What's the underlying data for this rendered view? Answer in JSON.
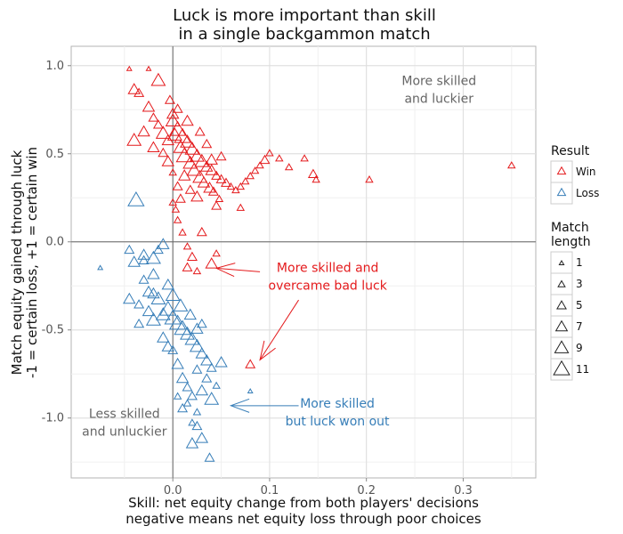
{
  "chart_data": {
    "type": "scatter",
    "title_lines": [
      "Luck is more important than skill",
      "in a single backgammon match"
    ],
    "xlabel_lines": [
      "Skill: net equity change from both players' decisions",
      "negative means net equity loss through poor choices"
    ],
    "ylabel_lines": [
      "Match equity gained through luck",
      "-1 = certain loss, +1 = certain win"
    ],
    "xlim": [
      -0.105,
      0.375
    ],
    "ylim": [
      -1.34,
      1.11
    ],
    "x_ticks": [
      0.0,
      0.1,
      0.2,
      0.3
    ],
    "x_tick_labels": [
      "0.0",
      "0.1",
      "0.2",
      "0.3"
    ],
    "y_ticks": [
      -1.0,
      -0.5,
      0.0,
      0.5,
      1.0
    ],
    "y_tick_labels": [
      "-1.0",
      "-0.5",
      "0.0",
      "0.5",
      "1.0"
    ],
    "grid": true,
    "colors": {
      "Win": "#e41a1c",
      "Loss": "#377eb8",
      "neutral": "#666666"
    },
    "legend": {
      "placement": "right",
      "result_title": "Result",
      "result_items": [
        "Win",
        "Loss"
      ],
      "length_title_lines": [
        "Match",
        "length"
      ],
      "length_items": [
        "1",
        "3",
        "5",
        "7",
        "9",
        "11"
      ]
    },
    "annotations": [
      {
        "lines": [
          "More skilled",
          "and luckier"
        ],
        "color": "neutral",
        "x": 0.275,
        "y": 0.89
      },
      {
        "lines": [
          "Less skilled",
          "and unluckier"
        ],
        "color": "neutral",
        "x": -0.05,
        "y": -1.0
      },
      {
        "lines": [
          "More skilled and",
          "overcame bad luck"
        ],
        "color": "Win",
        "x": 0.16,
        "y": -0.17
      },
      {
        "lines": [
          "More skilled",
          "but luck won out"
        ],
        "color": "Loss",
        "x": 0.17,
        "y": -0.94
      }
    ],
    "arrows": [
      {
        "color": "Win",
        "from": [
          0.09,
          -0.17
        ],
        "to": [
          0.045,
          -0.15
        ]
      },
      {
        "color": "Win",
        "from": [
          0.13,
          -0.33
        ],
        "to": [
          0.09,
          -0.67
        ]
      },
      {
        "color": "Loss",
        "from": [
          0.13,
          -0.93
        ],
        "to": [
          0.06,
          -0.93
        ]
      }
    ],
    "series": [
      {
        "name": "Win",
        "points": [
          [
            -0.045,
            0.98,
            1
          ],
          [
            -0.04,
            0.86,
            7
          ],
          [
            -0.025,
            0.98,
            1
          ],
          [
            -0.015,
            0.91,
            9
          ],
          [
            -0.035,
            0.84,
            5
          ],
          [
            -0.025,
            0.76,
            7
          ],
          [
            -0.02,
            0.7,
            5
          ],
          [
            -0.03,
            0.62,
            7
          ],
          [
            -0.04,
            0.57,
            9
          ],
          [
            -0.02,
            0.53,
            7
          ],
          [
            -0.015,
            0.66,
            5
          ],
          [
            -0.01,
            0.61,
            9
          ],
          [
            -0.005,
            0.57,
            7
          ],
          [
            -0.01,
            0.5,
            5
          ],
          [
            -0.005,
            0.45,
            7
          ],
          [
            0.0,
            0.39,
            3
          ],
          [
            0.005,
            0.31,
            5
          ],
          [
            0.0,
            0.22,
            3
          ],
          [
            0.005,
            0.12,
            3
          ],
          [
            0.01,
            0.05,
            3
          ],
          [
            0.015,
            -0.03,
            3
          ],
          [
            0.02,
            -0.09,
            5
          ],
          [
            0.015,
            -0.15,
            5
          ],
          [
            0.025,
            -0.17,
            3
          ],
          [
            0.04,
            -0.13,
            7
          ],
          [
            0.08,
            -0.7,
            5
          ],
          [
            0.045,
            -0.07,
            3
          ],
          [
            0.0,
            0.68,
            9
          ],
          [
            0.005,
            0.63,
            11
          ],
          [
            0.01,
            0.59,
            11
          ],
          [
            0.015,
            0.56,
            9
          ],
          [
            0.02,
            0.52,
            9
          ],
          [
            0.025,
            0.48,
            9
          ],
          [
            0.03,
            0.45,
            9
          ],
          [
            0.035,
            0.42,
            7
          ],
          [
            0.04,
            0.4,
            7
          ],
          [
            0.045,
            0.37,
            5
          ],
          [
            0.05,
            0.35,
            5
          ],
          [
            0.055,
            0.33,
            5
          ],
          [
            0.06,
            0.31,
            3
          ],
          [
            0.065,
            0.29,
            3
          ],
          [
            0.07,
            0.31,
            3
          ],
          [
            0.075,
            0.34,
            3
          ],
          [
            0.08,
            0.37,
            3
          ],
          [
            0.085,
            0.4,
            3
          ],
          [
            0.09,
            0.43,
            3
          ],
          [
            0.095,
            0.46,
            5
          ],
          [
            0.1,
            0.5,
            3
          ],
          [
            0.11,
            0.47,
            3
          ],
          [
            0.12,
            0.42,
            3
          ],
          [
            0.136,
            0.47,
            3
          ],
          [
            0.145,
            0.38,
            5
          ],
          [
            0.148,
            0.35,
            3
          ],
          [
            0.203,
            0.35,
            3
          ],
          [
            0.35,
            0.43,
            3
          ],
          [
            0.0,
            0.72,
            7
          ],
          [
            0.002,
            0.6,
            9
          ],
          [
            0.008,
            0.53,
            9
          ],
          [
            0.012,
            0.48,
            11
          ],
          [
            0.018,
            0.44,
            9
          ],
          [
            0.022,
            0.4,
            9
          ],
          [
            0.028,
            0.36,
            9
          ],
          [
            0.032,
            0.33,
            7
          ],
          [
            0.038,
            0.3,
            7
          ],
          [
            0.012,
            0.37,
            7
          ],
          [
            0.018,
            0.29,
            5
          ],
          [
            0.008,
            0.24,
            5
          ],
          [
            0.003,
            0.18,
            3
          ],
          [
            0.025,
            0.25,
            7
          ],
          [
            0.042,
            0.28,
            5
          ],
          [
            0.048,
            0.24,
            3
          ],
          [
            0.07,
            0.19,
            3
          ],
          [
            0.035,
            0.55,
            5
          ],
          [
            0.05,
            0.48,
            5
          ],
          [
            -0.003,
            0.8,
            5
          ],
          [
            0.005,
            0.75,
            5
          ],
          [
            0.015,
            0.68,
            7
          ],
          [
            0.028,
            0.62,
            5
          ],
          [
            0.04,
            0.46,
            7
          ],
          [
            0.045,
            0.2,
            5
          ],
          [
            0.03,
            0.05,
            5
          ]
        ]
      },
      {
        "name": "Loss",
        "points": [
          [
            -0.075,
            -0.15,
            1
          ],
          [
            -0.038,
            0.23,
            11
          ],
          [
            -0.045,
            -0.05,
            5
          ],
          [
            -0.03,
            -0.08,
            7
          ],
          [
            -0.04,
            -0.12,
            7
          ],
          [
            -0.02,
            -0.1,
            9
          ],
          [
            -0.015,
            -0.05,
            5
          ],
          [
            -0.01,
            -0.02,
            7
          ],
          [
            -0.02,
            -0.19,
            7
          ],
          [
            -0.03,
            -0.22,
            5
          ],
          [
            -0.025,
            -0.29,
            7
          ],
          [
            -0.015,
            -0.33,
            9
          ],
          [
            -0.045,
            -0.33,
            7
          ],
          [
            -0.035,
            -0.36,
            5
          ],
          [
            -0.025,
            -0.4,
            7
          ],
          [
            -0.035,
            -0.47,
            5
          ],
          [
            -0.02,
            -0.45,
            9
          ],
          [
            -0.01,
            -0.42,
            9
          ],
          [
            -0.005,
            -0.39,
            11
          ],
          [
            0.0,
            -0.44,
            11
          ],
          [
            0.005,
            -0.47,
            11
          ],
          [
            0.01,
            -0.5,
            11
          ],
          [
            0.015,
            -0.53,
            9
          ],
          [
            0.02,
            -0.56,
            9
          ],
          [
            0.025,
            -0.6,
            9
          ],
          [
            0.03,
            -0.64,
            7
          ],
          [
            0.035,
            -0.68,
            7
          ],
          [
            0.04,
            -0.72,
            5
          ],
          [
            0.05,
            -0.69,
            7
          ],
          [
            -0.01,
            -0.55,
            7
          ],
          [
            0.0,
            -0.62,
            5
          ],
          [
            0.005,
            -0.7,
            7
          ],
          [
            0.01,
            -0.78,
            7
          ],
          [
            0.015,
            -0.83,
            5
          ],
          [
            0.02,
            -0.88,
            5
          ],
          [
            0.03,
            -0.85,
            7
          ],
          [
            0.04,
            -0.9,
            9
          ],
          [
            0.01,
            -0.95,
            5
          ],
          [
            0.02,
            -1.03,
            3
          ],
          [
            0.025,
            -1.05,
            5
          ],
          [
            0.03,
            -1.12,
            7
          ],
          [
            0.02,
            -1.15,
            7
          ],
          [
            0.038,
            -1.23,
            5
          ],
          [
            0.08,
            -0.85,
            1
          ],
          [
            0.015,
            -0.92,
            3
          ],
          [
            0.005,
            -0.88,
            3
          ],
          [
            0.025,
            -0.97,
            3
          ],
          [
            -0.005,
            -0.6,
            7
          ],
          [
            0.025,
            -0.73,
            5
          ],
          [
            0.035,
            -0.78,
            5
          ],
          [
            0.045,
            -0.82,
            3
          ],
          [
            0.03,
            -0.47,
            5
          ],
          [
            0.025,
            -0.5,
            7
          ],
          [
            -0.005,
            -0.25,
            7
          ],
          [
            0.0,
            -0.31,
            9
          ],
          [
            0.008,
            -0.37,
            9
          ],
          [
            0.018,
            -0.42,
            7
          ],
          [
            -0.02,
            -0.3,
            7
          ],
          [
            -0.03,
            -0.11,
            5
          ]
        ]
      }
    ]
  }
}
